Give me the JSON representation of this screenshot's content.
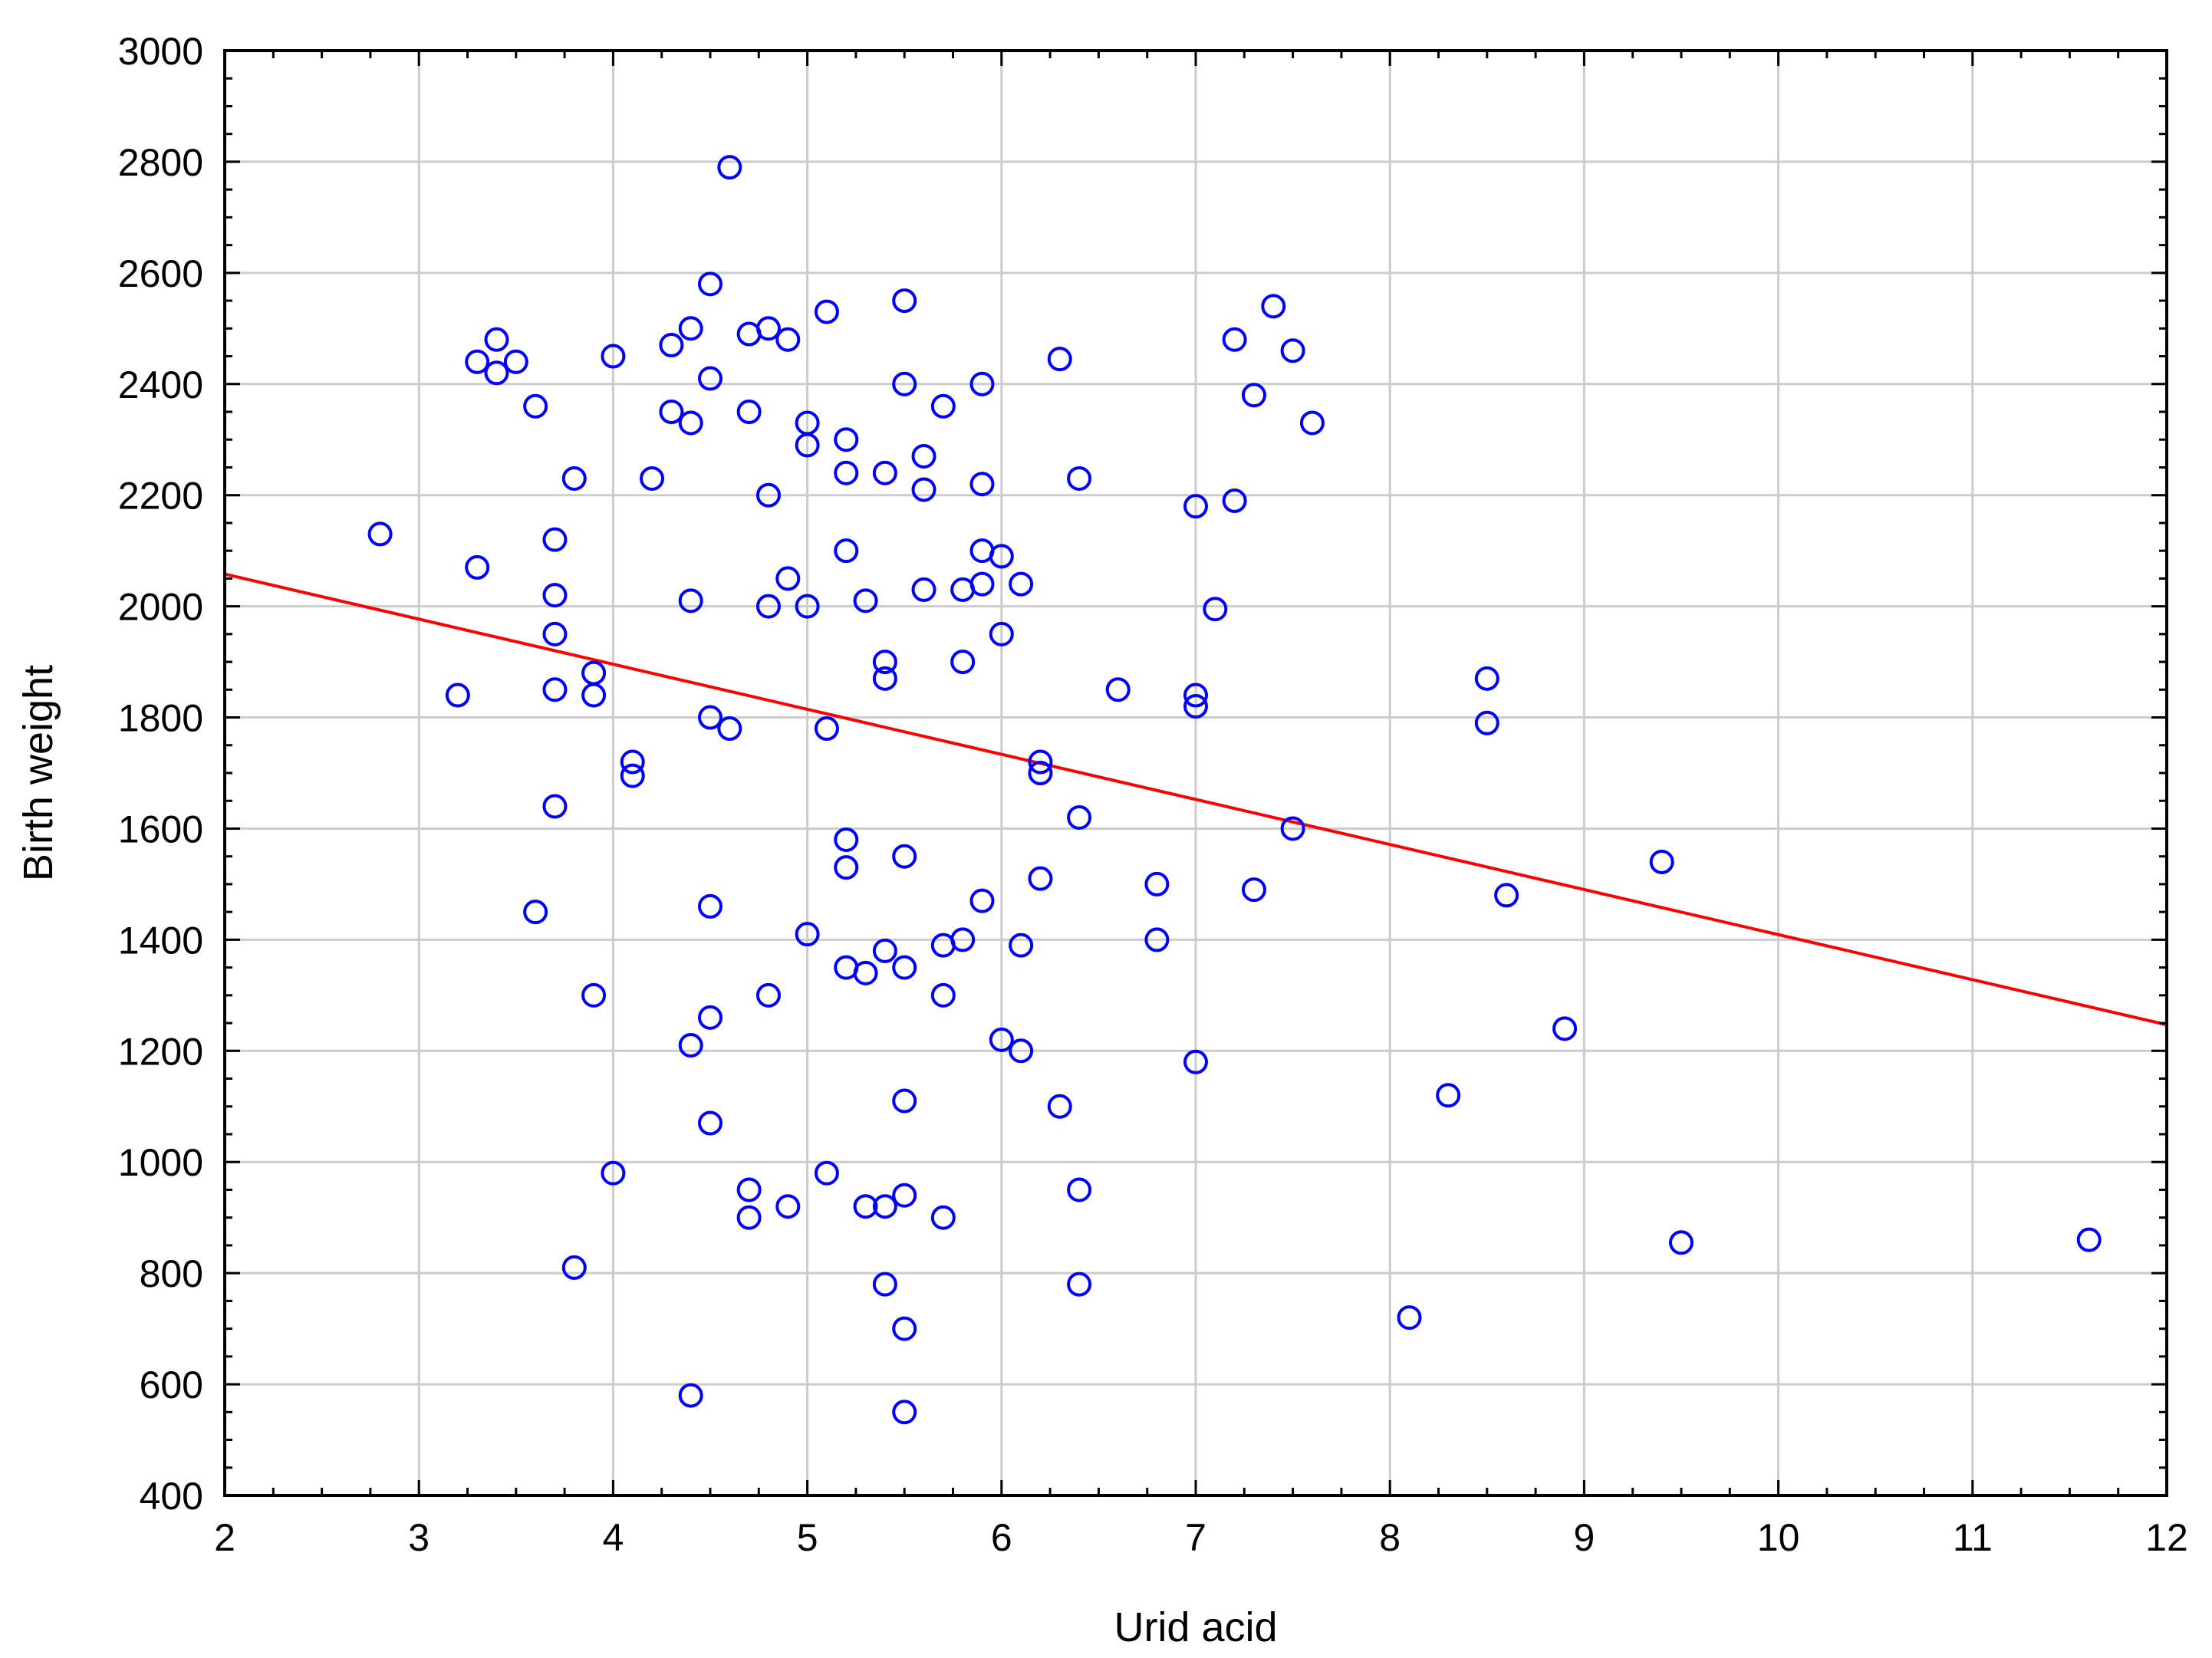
{
  "chart_data": {
    "type": "scatter",
    "title": "",
    "xlabel": "Urid acid",
    "ylabel": "Birth weight",
    "xlim": [
      2,
      12
    ],
    "ylim": [
      400,
      3000
    ],
    "xticks": [
      2,
      3,
      4,
      5,
      6,
      7,
      8,
      9,
      10,
      11,
      12
    ],
    "yticks": [
      400,
      600,
      800,
      1000,
      1200,
      1400,
      1600,
      1800,
      2000,
      2200,
      2400,
      2600,
      2800,
      3000
    ],
    "grid": true,
    "legend": "none",
    "colors": {
      "points": "#0000ff",
      "fit_line": "#ff0000",
      "grid": "#cccccc",
      "axes": "#000000"
    },
    "fit_line": {
      "x": [
        2,
        12
      ],
      "y": [
        2058,
        1247
      ]
    },
    "points": [
      [
        2.8,
        2130
      ],
      [
        3.2,
        1840
      ],
      [
        3.3,
        2440
      ],
      [
        3.3,
        2070
      ],
      [
        3.4,
        2480
      ],
      [
        3.4,
        2420
      ],
      [
        3.5,
        2440
      ],
      [
        3.6,
        2360
      ],
      [
        3.6,
        1450
      ],
      [
        3.7,
        2120
      ],
      [
        3.7,
        2020
      ],
      [
        3.7,
        1950
      ],
      [
        3.7,
        1850
      ],
      [
        3.7,
        1640
      ],
      [
        3.8,
        2230
      ],
      [
        3.8,
        810
      ],
      [
        3.9,
        1880
      ],
      [
        3.9,
        1840
      ],
      [
        3.9,
        1300
      ],
      [
        4.0,
        2450
      ],
      [
        4.0,
        980
      ],
      [
        4.1,
        1720
      ],
      [
        4.1,
        1695
      ],
      [
        4.2,
        2230
      ],
      [
        4.3,
        2470
      ],
      [
        4.3,
        2350
      ],
      [
        4.4,
        2500
      ],
      [
        4.4,
        2330
      ],
      [
        4.4,
        2010
      ],
      [
        4.4,
        1210
      ],
      [
        4.4,
        580
      ],
      [
        4.5,
        2580
      ],
      [
        4.5,
        2410
      ],
      [
        4.5,
        1800
      ],
      [
        4.5,
        1460
      ],
      [
        4.5,
        1260
      ],
      [
        4.5,
        1070
      ],
      [
        4.6,
        2790
      ],
      [
        4.6,
        1780
      ],
      [
        4.7,
        2490
      ],
      [
        4.7,
        2350
      ],
      [
        4.7,
        950
      ],
      [
        4.7,
        900
      ],
      [
        4.8,
        2500
      ],
      [
        4.8,
        2200
      ],
      [
        4.8,
        2000
      ],
      [
        4.8,
        1300
      ],
      [
        4.9,
        2480
      ],
      [
        4.9,
        2050
      ],
      [
        4.9,
        920
      ],
      [
        5.0,
        2330
      ],
      [
        5.0,
        2290
      ],
      [
        5.0,
        2000
      ],
      [
        5.0,
        1410
      ],
      [
        5.1,
        2530
      ],
      [
        5.1,
        1780
      ],
      [
        5.1,
        980
      ],
      [
        5.2,
        2300
      ],
      [
        5.2,
        2240
      ],
      [
        5.2,
        2100
      ],
      [
        5.2,
        1580
      ],
      [
        5.2,
        1530
      ],
      [
        5.2,
        1350
      ],
      [
        5.3,
        2010
      ],
      [
        5.3,
        1340
      ],
      [
        5.3,
        920
      ],
      [
        5.4,
        2240
      ],
      [
        5.4,
        1900
      ],
      [
        5.4,
        1870
      ],
      [
        5.4,
        1380
      ],
      [
        5.4,
        920
      ],
      [
        5.4,
        780
      ],
      [
        5.5,
        2550
      ],
      [
        5.5,
        2400
      ],
      [
        5.5,
        1550
      ],
      [
        5.5,
        1350
      ],
      [
        5.5,
        1110
      ],
      [
        5.5,
        940
      ],
      [
        5.5,
        700
      ],
      [
        5.5,
        550
      ],
      [
        5.6,
        2270
      ],
      [
        5.6,
        2210
      ],
      [
        5.6,
        2030
      ],
      [
        5.7,
        2360
      ],
      [
        5.7,
        1390
      ],
      [
        5.7,
        1300
      ],
      [
        5.7,
        900
      ],
      [
        5.8,
        2030
      ],
      [
        5.8,
        1900
      ],
      [
        5.8,
        1400
      ],
      [
        5.9,
        2400
      ],
      [
        5.9,
        2220
      ],
      [
        5.9,
        2100
      ],
      [
        5.9,
        2040
      ],
      [
        5.9,
        1470
      ],
      [
        6.0,
        2090
      ],
      [
        6.0,
        1950
      ],
      [
        6.0,
        1220
      ],
      [
        6.1,
        2040
      ],
      [
        6.1,
        1390
      ],
      [
        6.1,
        1200
      ],
      [
        6.2,
        1720
      ],
      [
        6.2,
        1700
      ],
      [
        6.2,
        1510
      ],
      [
        6.3,
        2445
      ],
      [
        6.3,
        1100
      ],
      [
        6.4,
        2230
      ],
      [
        6.4,
        1620
      ],
      [
        6.4,
        950
      ],
      [
        6.4,
        780
      ],
      [
        6.6,
        1850
      ],
      [
        6.8,
        1500
      ],
      [
        6.8,
        1400
      ],
      [
        7.0,
        2180
      ],
      [
        7.0,
        1840
      ],
      [
        7.0,
        1820
      ],
      [
        7.0,
        1180
      ],
      [
        7.1,
        1995
      ],
      [
        7.2,
        2480
      ],
      [
        7.2,
        2190
      ],
      [
        7.3,
        2380
      ],
      [
        7.3,
        1490
      ],
      [
        7.4,
        2540
      ],
      [
        7.5,
        2460
      ],
      [
        7.5,
        1600
      ],
      [
        7.6,
        2330
      ],
      [
        8.1,
        720
      ],
      [
        8.3,
        1120
      ],
      [
        8.5,
        1870
      ],
      [
        8.5,
        1790
      ],
      [
        8.6,
        1480
      ],
      [
        8.9,
        1240
      ],
      [
        9.4,
        1540
      ],
      [
        9.5,
        855
      ],
      [
        11.6,
        860
      ]
    ]
  }
}
